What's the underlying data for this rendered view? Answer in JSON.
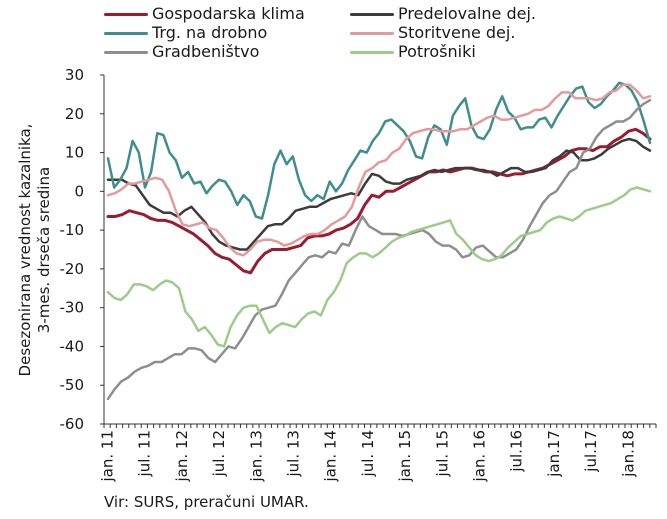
{
  "chart_data": {
    "type": "line",
    "ylabel_lines": [
      "Desezonirana vrednost kazalnika,",
      "3-mes. drseča sredina"
    ],
    "source": "Vir: SURS, preračuni UMAR.",
    "ylim": [
      -60,
      30
    ],
    "yticks": [
      "30",
      "20",
      "10",
      "0",
      "-10",
      "-20",
      "-30",
      "-40",
      "-50",
      "-60"
    ],
    "xtick_labels": [
      "jan. 11",
      "jul. 11",
      "jan. 12",
      "jul. 12",
      "jan. 13",
      "jul. 13",
      "jan. 14",
      "jul. 14",
      "jan. 15",
      "jul. 15",
      "jan. 16",
      "jul.16",
      "jan.17",
      "jul.17",
      "jan.18"
    ],
    "x_start": "2011-01",
    "x_end": "2018-05",
    "legend_position": "top",
    "grid": false,
    "series": [
      {
        "name": "Gospodarska klima",
        "color": "#9b1b30",
        "values": [
          -6.5,
          -6.5,
          -6,
          -5,
          -5.5,
          -6,
          -7,
          -7.5,
          -7.5,
          -8,
          -9,
          -10,
          -11,
          -12.5,
          -14,
          -16,
          -17,
          -17.5,
          -19,
          -20.5,
          -21,
          -18,
          -16,
          -15,
          -15,
          -15,
          -14.5,
          -14,
          -12,
          -11.5,
          -11.5,
          -11,
          -10,
          -9.5,
          -8.5,
          -7,
          -3.5,
          -1,
          -1.5,
          0,
          0,
          1,
          2,
          3,
          4,
          5,
          5,
          5.5,
          5,
          5.5,
          6,
          6,
          5.5,
          5,
          5,
          4.5,
          4,
          4.5,
          4.5,
          5,
          5.5,
          6,
          7,
          8,
          9,
          10.5,
          11,
          11,
          10.5,
          11.5,
          11.5,
          13,
          14,
          15.5,
          16,
          15,
          13.5
        ]
      },
      {
        "name": "Predelovalne dej.",
        "color": "#3c3c3c",
        "values": [
          3,
          3,
          3,
          2,
          1.5,
          -1,
          -3.5,
          -4.5,
          -5.5,
          -5.5,
          -6.5,
          -5,
          -4,
          -6,
          -8,
          -11,
          -13,
          -14,
          -14.5,
          -15,
          -15,
          -13,
          -11,
          -9,
          -8.5,
          -8.5,
          -7,
          -5,
          -4.5,
          -4,
          -4,
          -3,
          -2,
          -1.5,
          -1,
          -0.5,
          -1,
          2,
          4.5,
          4,
          2.5,
          2,
          2,
          3,
          3.5,
          4,
          5,
          5.5,
          5,
          5.5,
          6,
          6,
          6,
          5.5,
          5.5,
          5,
          4,
          5,
          6,
          6,
          5,
          5,
          5.5,
          6,
          8,
          9,
          10.5,
          10,
          8,
          8,
          8.5,
          9.5,
          11,
          12,
          13,
          13.5,
          13,
          11.5,
          10.5
        ]
      },
      {
        "name": "Trg. na drobno",
        "color": "#3e8e8e",
        "values": [
          8.5,
          1,
          3,
          6,
          13,
          10,
          1,
          5,
          15,
          14.5,
          10,
          8,
          3.5,
          5,
          2,
          2.5,
          -0.5,
          1.5,
          3,
          2.5,
          0,
          -3.5,
          -1,
          -2.5,
          -6.5,
          -7,
          -1,
          7,
          10.5,
          7,
          9,
          3,
          -1,
          -2.5,
          -1,
          -2,
          2.5,
          0,
          2,
          5.5,
          8,
          10.5,
          10,
          13,
          15,
          18,
          18.5,
          17,
          15.5,
          13,
          9,
          8.5,
          14,
          17,
          16,
          12,
          19.5,
          22,
          24,
          17,
          14,
          13.5,
          16,
          21,
          24.5,
          20.5,
          19,
          16,
          16.5,
          16.5,
          18.5,
          19,
          16.5,
          19.5,
          22,
          24.5,
          26.5,
          27,
          23,
          21.5,
          22.5,
          24.5,
          26,
          28,
          27.5,
          26,
          23,
          18,
          12.5
        ]
      },
      {
        "name": "Storitvene dej.",
        "color": "#e39a9a",
        "values": [
          -1,
          -0.5,
          0.5,
          2,
          2,
          2.5,
          3,
          3.5,
          3,
          0,
          -5,
          -8.5,
          -9,
          -8.5,
          -8,
          -9.5,
          -10,
          -12,
          -14.5,
          -16,
          -16.5,
          -15,
          -13,
          -12.5,
          -12.5,
          -13,
          -14,
          -13.5,
          -12.5,
          -11.5,
          -11,
          -11,
          -10,
          -8.5,
          -7.5,
          -6.5,
          -4,
          1,
          5,
          6,
          7.5,
          8,
          10,
          11,
          13.5,
          15,
          15.5,
          16,
          16,
          15.5,
          15.5,
          15.5,
          16,
          16,
          17,
          18,
          19,
          19.5,
          18.5,
          18.5,
          19,
          19.5,
          20,
          21,
          21,
          22,
          24,
          25.5,
          25.5,
          24,
          24,
          24,
          23.5,
          24,
          25.5,
          26,
          27.5,
          27.5,
          26,
          24,
          24.5
        ]
      },
      {
        "name": "Gradbeništvo",
        "color": "#8e8e8e",
        "values": [
          -53.5,
          -51,
          -49,
          -48,
          -46.5,
          -45.5,
          -45,
          -44,
          -44,
          -43,
          -42,
          -42,
          -40.5,
          -40.5,
          -41,
          -43,
          -44,
          -42,
          -40,
          -40.5,
          -38,
          -35,
          -32,
          -30.5,
          -30,
          -29.5,
          -26.5,
          -23,
          -21,
          -19,
          -17,
          -16.5,
          -17,
          -15.5,
          -16,
          -13.5,
          -14,
          -10,
          -6.5,
          -9,
          -10,
          -11,
          -11,
          -11,
          -11.5,
          -11,
          -10.5,
          -10,
          -11,
          -13,
          -14,
          -14,
          -15,
          -17,
          -16.5,
          -14.5,
          -14,
          -15.5,
          -17,
          -17,
          -16,
          -15,
          -12.5,
          -9,
          -6,
          -3,
          -1,
          0,
          2.5,
          5,
          6,
          10,
          11,
          14,
          16,
          17,
          18,
          18,
          19,
          21,
          22.5,
          23.5
        ]
      },
      {
        "name": "Potrošniki",
        "color": "#9ecb8c",
        "values": [
          -26,
          -27.5,
          -28,
          -26.5,
          -24,
          -24,
          -24.5,
          -25.5,
          -24,
          -23,
          -23.5,
          -25,
          -31,
          -33,
          -36,
          -35,
          -37,
          -39.5,
          -40,
          -35,
          -32,
          -30,
          -29.5,
          -29.5,
          -33,
          -36.5,
          -35,
          -34,
          -34.5,
          -35,
          -33,
          -31.5,
          -31,
          -32,
          -28,
          -26,
          -23,
          -18.5,
          -17,
          -16,
          -16,
          -17,
          -16,
          -14.5,
          -13,
          -12,
          -11.5,
          -10.5,
          -10,
          -9.5,
          -9,
          -8.5,
          -8,
          -7.5,
          -11,
          -12.5,
          -14.5,
          -16.5,
          -17.5,
          -18,
          -17.5,
          -16.5,
          -14.5,
          -13,
          -11.5,
          -11,
          -10.5,
          -10,
          -8,
          -7,
          -6.5,
          -7,
          -7.5,
          -6.5,
          -5,
          -4.5,
          -4,
          -3.5,
          -3,
          -2,
          -1,
          0.5,
          1,
          0.5,
          0
        ]
      }
    ]
  }
}
